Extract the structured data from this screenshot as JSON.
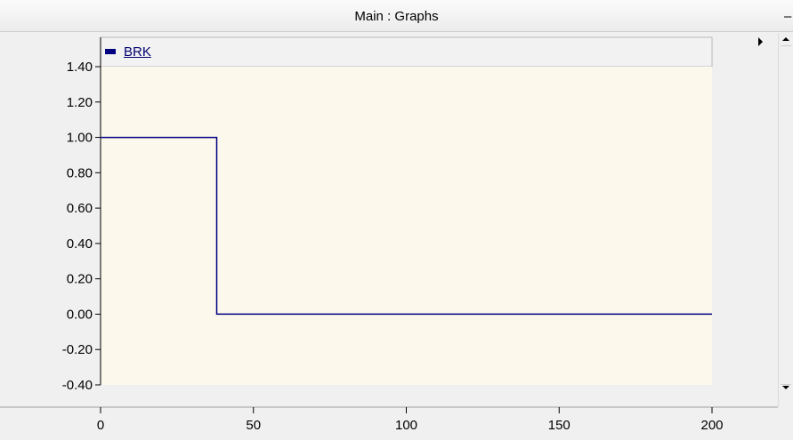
{
  "window": {
    "title": "Main : Graphs",
    "minimize_symbol": "–"
  },
  "legend": {
    "series_name": "BRK",
    "series_color": "#000080"
  },
  "chart_data": {
    "type": "line",
    "series": [
      {
        "name": "BRK",
        "color": "#000080",
        "step": true,
        "points": [
          [
            0,
            1.0
          ],
          [
            38,
            1.0
          ],
          [
            38,
            0.0
          ],
          [
            200,
            0.0
          ]
        ]
      }
    ],
    "xlim": [
      0,
      200
    ],
    "ylim": [
      -0.4,
      1.4
    ],
    "xticks": [
      "0",
      "50",
      "100",
      "150",
      "200"
    ],
    "yticks": [
      "1.40",
      "1.20",
      "1.00",
      "0.80",
      "0.60",
      "0.40",
      "0.20",
      "0.00",
      "-0.20",
      "-0.40"
    ],
    "plot_background": "#fdf8ec",
    "grid": false,
    "legend_position": "top-left"
  }
}
